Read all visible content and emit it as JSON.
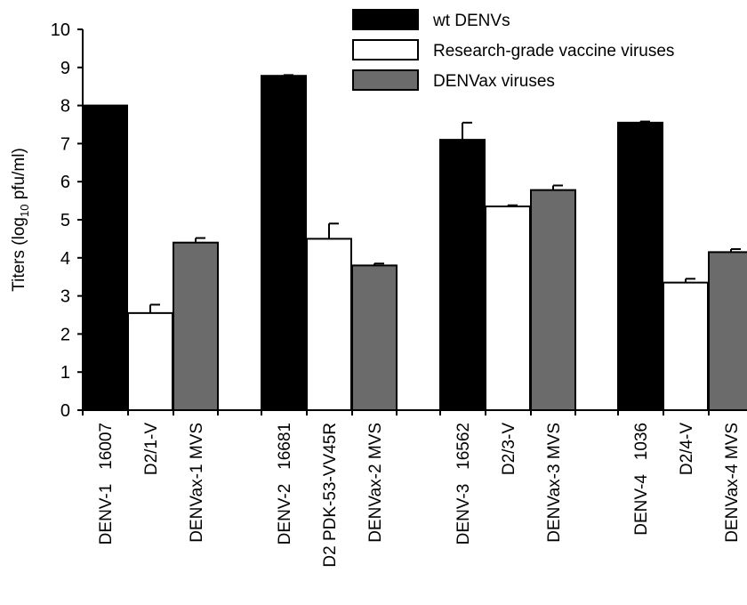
{
  "chart_data": {
    "type": "bar",
    "title": "",
    "xlabel": "",
    "ylabel": "Titers (log",
    "ylabel_sub": "10",
    "ylabel_tail": " pfu/ml)",
    "ylim": [
      0,
      10
    ],
    "yticks": [
      "0",
      "1",
      "2",
      "3",
      "4",
      "5",
      "6",
      "7",
      "8",
      "9",
      "10"
    ],
    "legend_position": "top-right",
    "grid": false,
    "series": [
      {
        "name": "wt DENVs",
        "color": "#000000"
      },
      {
        "name": "Research-grade vaccine viruses",
        "color": "#ffffff"
      },
      {
        "name": "DENVax viruses",
        "color": "#6b6b6b"
      }
    ],
    "groups": [
      {
        "bars": [
          {
            "label": "DENV-1   16007",
            "series": 0,
            "value": 8.0,
            "error": 0
          },
          {
            "label": "D2/1-V",
            "series": 1,
            "value": 2.55,
            "error": 0.22
          },
          {
            "label": "DENVax-1 MVS",
            "series": 2,
            "value": 4.4,
            "error": 0.12
          }
        ]
      },
      {
        "bars": [
          {
            "label": "DENV-2   16681",
            "series": 0,
            "value": 8.78,
            "error": 0.02
          },
          {
            "label": "D2 PDK-53-VV45R",
            "series": 1,
            "value": 4.5,
            "error": 0.4
          },
          {
            "label": "DENVax-2 MVS",
            "series": 2,
            "value": 3.8,
            "error": 0.05
          }
        ]
      },
      {
        "bars": [
          {
            "label": "DENV-3   16562",
            "series": 0,
            "value": 7.1,
            "error": 0.45
          },
          {
            "label": "D2/3-V",
            "series": 1,
            "value": 5.35,
            "error": 0.03
          },
          {
            "label": "DENVax-3 MVS",
            "series": 2,
            "value": 5.78,
            "error": 0.12
          }
        ]
      },
      {
        "bars": [
          {
            "label": "DENV-4   1036",
            "series": 0,
            "value": 7.55,
            "error": 0.03
          },
          {
            "label": "D2/4-V",
            "series": 1,
            "value": 3.35,
            "error": 0.1
          },
          {
            "label": "DENVax-4 MVS",
            "series": 2,
            "value": 4.15,
            "error": 0.08
          }
        ]
      }
    ]
  }
}
